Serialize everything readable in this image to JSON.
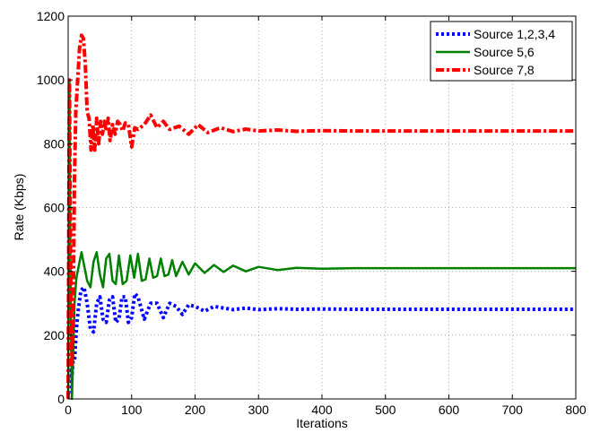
{
  "chart_data": {
    "type": "line",
    "title": "",
    "xlabel": "Iterations",
    "ylabel": "Rate (Kbps)",
    "xlim": [
      0,
      800
    ],
    "ylim": [
      0,
      1200
    ],
    "x_ticks": [
      0,
      100,
      200,
      300,
      400,
      500,
      600,
      700,
      800
    ],
    "y_ticks": [
      0,
      200,
      400,
      600,
      800,
      1000,
      1200
    ],
    "grid": true,
    "legend_position": "top-right",
    "series": [
      {
        "name": "Source 1,2,3,4",
        "color": "#0000ff",
        "style": "dotted",
        "x": [
          0,
          2,
          4,
          6,
          8,
          10,
          13,
          16,
          20,
          25,
          30,
          35,
          40,
          45,
          50,
          55,
          60,
          65,
          70,
          75,
          80,
          85,
          90,
          95,
          100,
          105,
          110,
          120,
          130,
          140,
          150,
          160,
          170,
          180,
          190,
          200,
          215,
          230,
          245,
          260,
          280,
          300,
          330,
          360,
          400,
          450,
          500,
          600,
          700,
          800
        ],
        "y": [
          0,
          40,
          90,
          70,
          130,
          120,
          220,
          280,
          340,
          350,
          300,
          220,
          210,
          300,
          320,
          250,
          240,
          310,
          320,
          240,
          250,
          320,
          320,
          240,
          255,
          330,
          320,
          250,
          300,
          300,
          255,
          300,
          290,
          265,
          295,
          290,
          275,
          290,
          285,
          280,
          285,
          280,
          283,
          281,
          282,
          281,
          281,
          281,
          281,
          281
        ]
      },
      {
        "name": "Source 5,6",
        "color": "#008000",
        "style": "solid",
        "x": [
          0,
          2,
          4,
          6,
          8,
          10,
          13,
          17,
          21,
          25,
          30,
          35,
          40,
          45,
          50,
          55,
          60,
          65,
          70,
          75,
          80,
          86,
          92,
          98,
          104,
          110,
          116,
          122,
          128,
          134,
          140,
          146,
          152,
          158,
          164,
          170,
          180,
          190,
          200,
          215,
          230,
          245,
          260,
          280,
          300,
          330,
          360,
          400,
          450,
          500,
          600,
          700,
          800
        ],
        "y": [
          0,
          1000,
          300,
          0,
          150,
          300,
          380,
          420,
          460,
          420,
          370,
          350,
          430,
          460,
          390,
          350,
          440,
          455,
          370,
          360,
          450,
          360,
          370,
          450,
          380,
          455,
          370,
          375,
          440,
          380,
          385,
          440,
          385,
          390,
          435,
          385,
          430,
          390,
          425,
          395,
          420,
          398,
          418,
          400,
          414,
          404,
          411,
          408,
          410,
          410,
          410,
          410,
          410
        ]
      },
      {
        "name": "Source 7,8",
        "color": "#ff0000",
        "style": "dashdot",
        "x": [
          0,
          2,
          4,
          6,
          8,
          10,
          12,
          15,
          18,
          21,
          24,
          27,
          30,
          33,
          36,
          39,
          42,
          45,
          48,
          51,
          54,
          57,
          60,
          63,
          66,
          70,
          74,
          78,
          82,
          86,
          90,
          95,
          100,
          105,
          110,
          120,
          130,
          140,
          150,
          160,
          175,
          190,
          205,
          220,
          240,
          260,
          280,
          300,
          330,
          360,
          400,
          450,
          500,
          600,
          700,
          800
        ],
        "y": [
          0,
          1000,
          400,
          100,
          300,
          700,
          900,
          1000,
          1100,
          1140,
          1130,
          1050,
          900,
          880,
          780,
          860,
          780,
          880,
          800,
          870,
          830,
          870,
          840,
          880,
          810,
          860,
          830,
          870,
          860,
          840,
          865,
          860,
          790,
          850,
          845,
          860,
          890,
          850,
          870,
          845,
          855,
          830,
          860,
          835,
          850,
          838,
          846,
          840,
          843,
          839,
          841,
          840,
          840,
          840,
          840,
          840
        ]
      }
    ]
  }
}
